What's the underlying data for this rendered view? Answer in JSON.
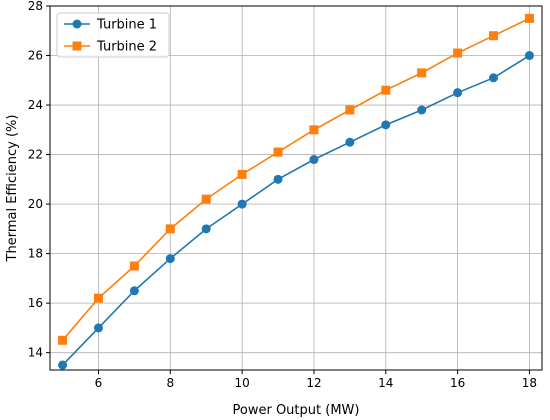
{
  "chart_data": {
    "type": "line",
    "title": "",
    "xlabel": "Power Output (MW)",
    "ylabel": "Thermal Efficiency (%)",
    "xlim": [
      4.65,
      18.35
    ],
    "ylim": [
      13.3,
      28.0
    ],
    "xticks": [
      6,
      8,
      10,
      12,
      14,
      16,
      18
    ],
    "yticks": [
      14,
      16,
      18,
      20,
      22,
      24,
      26,
      28
    ],
    "grid": true,
    "legend_position": "top-left",
    "x": [
      5,
      6,
      7,
      8,
      9,
      10,
      11,
      12,
      13,
      14,
      15,
      16,
      17,
      18
    ],
    "series": [
      {
        "name": "Turbine 1",
        "color": "#1f77b4",
        "marker": "circle",
        "values": [
          13.5,
          15.0,
          16.5,
          17.8,
          19.0,
          20.0,
          21.0,
          21.8,
          22.5,
          23.2,
          23.8,
          24.5,
          25.1,
          26.0
        ]
      },
      {
        "name": "Turbine 2",
        "color": "#ff7f0e",
        "marker": "square",
        "values": [
          14.5,
          16.2,
          17.5,
          19.0,
          20.2,
          21.2,
          22.1,
          23.0,
          23.8,
          24.6,
          25.3,
          26.1,
          26.8,
          27.5
        ]
      }
    ]
  }
}
